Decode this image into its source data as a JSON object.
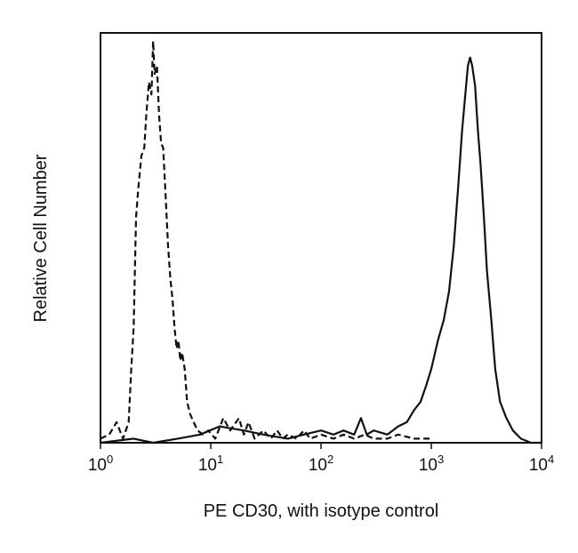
{
  "chart_data": {
    "type": "line",
    "title": "",
    "xlabel": "PE CD30, with isotype control",
    "ylabel": "Relative Cell Number",
    "x_scale": "log",
    "xlim": [
      1,
      10000
    ],
    "ylim": [
      0,
      100
    ],
    "grid": false,
    "legend": "none",
    "x_ticks": [
      {
        "base": "10",
        "exp": "0",
        "value": 1
      },
      {
        "base": "10",
        "exp": "1",
        "value": 10
      },
      {
        "base": "10",
        "exp": "2",
        "value": 100
      },
      {
        "base": "10",
        "exp": "3",
        "value": 1000
      },
      {
        "base": "10",
        "exp": "4",
        "value": 10000
      }
    ],
    "series": [
      {
        "style": "dashed",
        "color": "#111111",
        "x": [
          1.0,
          1.2,
          1.4,
          1.6,
          1.8,
          1.9,
          2.0,
          2.1,
          2.2,
          2.35,
          2.5,
          2.6,
          2.75,
          2.9,
          3.0,
          3.1,
          3.25,
          3.4,
          3.55,
          3.7,
          3.9,
          4.1,
          4.3,
          4.5,
          4.7,
          4.9,
          5.1,
          5.3,
          5.5,
          5.8,
          6.1,
          6.5,
          7.0,
          7.6,
          8.5,
          9.5,
          11,
          13,
          15,
          18,
          20,
          22,
          25,
          30,
          35,
          40,
          45,
          50,
          60,
          70,
          80,
          100,
          130,
          160,
          200,
          250,
          300,
          400,
          500,
          700,
          1000
        ],
        "values": [
          1,
          2,
          5,
          1,
          5,
          18,
          28,
          55,
          62,
          70,
          72,
          80,
          88,
          85,
          98,
          90,
          92,
          80,
          73,
          72,
          60,
          48,
          40,
          35,
          28,
          23,
          25,
          20,
          22,
          18,
          10,
          7,
          5,
          3,
          2,
          3,
          1,
          6,
          3,
          6,
          2,
          5,
          1,
          3,
          1,
          3,
          1,
          2,
          1,
          3,
          1,
          2,
          1,
          2,
          1,
          2,
          1,
          1,
          2,
          1,
          1
        ]
      },
      {
        "style": "solid",
        "color": "#111111",
        "x": [
          1.0,
          2.0,
          3.0,
          5.0,
          8.0,
          12,
          20,
          30,
          50,
          70,
          100,
          130,
          160,
          200,
          230,
          260,
          300,
          400,
          500,
          600,
          700,
          800,
          900,
          1000,
          1150,
          1300,
          1450,
          1600,
          1750,
          1900,
          2050,
          2150,
          2250,
          2350,
          2500,
          2650,
          2800,
          3000,
          3200,
          3500,
          3800,
          4200,
          4800,
          5500,
          6500,
          8000,
          10000
        ],
        "values": [
          0,
          1,
          0,
          1,
          2,
          4,
          3,
          2,
          1,
          2,
          3,
          2,
          3,
          2,
          6,
          2,
          3,
          2,
          4,
          5,
          8,
          10,
          14,
          18,
          25,
          30,
          37,
          48,
          62,
          76,
          86,
          92,
          94,
          92,
          87,
          76,
          68,
          55,
          42,
          30,
          18,
          10,
          6,
          3,
          1,
          0,
          0
        ]
      }
    ]
  }
}
